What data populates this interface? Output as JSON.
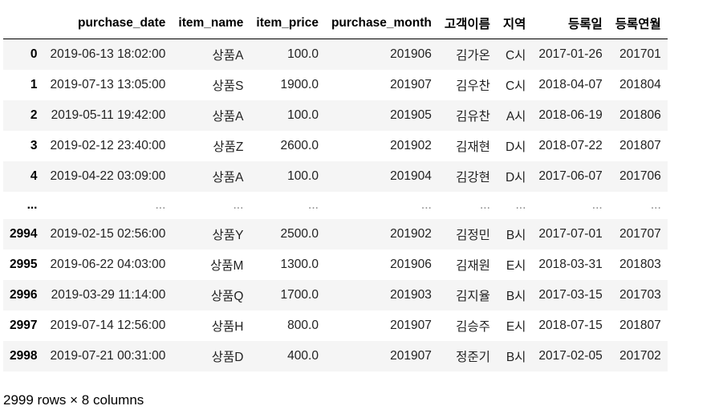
{
  "columns": [
    "purchase_date",
    "item_name",
    "item_price",
    "purchase_month",
    "고객이름",
    "지역",
    "등록일",
    "등록연월"
  ],
  "rows_top": [
    {
      "idx": "0",
      "cells": [
        "2019-06-13 18:02:00",
        "상품A",
        "100.0",
        "201906",
        "김가온",
        "C시",
        "2017-01-26",
        "201701"
      ]
    },
    {
      "idx": "1",
      "cells": [
        "2019-07-13 13:05:00",
        "상품S",
        "1900.0",
        "201907",
        "김우찬",
        "C시",
        "2018-04-07",
        "201804"
      ]
    },
    {
      "idx": "2",
      "cells": [
        "2019-05-11 19:42:00",
        "상품A",
        "100.0",
        "201905",
        "김유찬",
        "A시",
        "2018-06-19",
        "201806"
      ]
    },
    {
      "idx": "3",
      "cells": [
        "2019-02-12 23:40:00",
        "상품Z",
        "2600.0",
        "201902",
        "김재현",
        "D시",
        "2018-07-22",
        "201807"
      ]
    },
    {
      "idx": "4",
      "cells": [
        "2019-04-22 03:09:00",
        "상품A",
        "100.0",
        "201904",
        "김강현",
        "D시",
        "2017-06-07",
        "201706"
      ]
    }
  ],
  "ellipsis": {
    "idx": "...",
    "cell": "..."
  },
  "rows_bottom": [
    {
      "idx": "2994",
      "cells": [
        "2019-02-15 02:56:00",
        "상품Y",
        "2500.0",
        "201902",
        "김정민",
        "B시",
        "2017-07-01",
        "201707"
      ]
    },
    {
      "idx": "2995",
      "cells": [
        "2019-06-22 04:03:00",
        "상품M",
        "1300.0",
        "201906",
        "김재원",
        "E시",
        "2018-03-31",
        "201803"
      ]
    },
    {
      "idx": "2996",
      "cells": [
        "2019-03-29 11:14:00",
        "상품Q",
        "1700.0",
        "201903",
        "김지율",
        "B시",
        "2017-03-15",
        "201703"
      ]
    },
    {
      "idx": "2997",
      "cells": [
        "2019-07-14 12:56:00",
        "상품H",
        "800.0",
        "201907",
        "김승주",
        "E시",
        "2018-07-15",
        "201807"
      ]
    },
    {
      "idx": "2998",
      "cells": [
        "2019-07-21 00:31:00",
        "상품D",
        "400.0",
        "201907",
        "정준기",
        "B시",
        "2017-02-05",
        "201702"
      ]
    }
  ],
  "footer": "2999 rows × 8 columns"
}
